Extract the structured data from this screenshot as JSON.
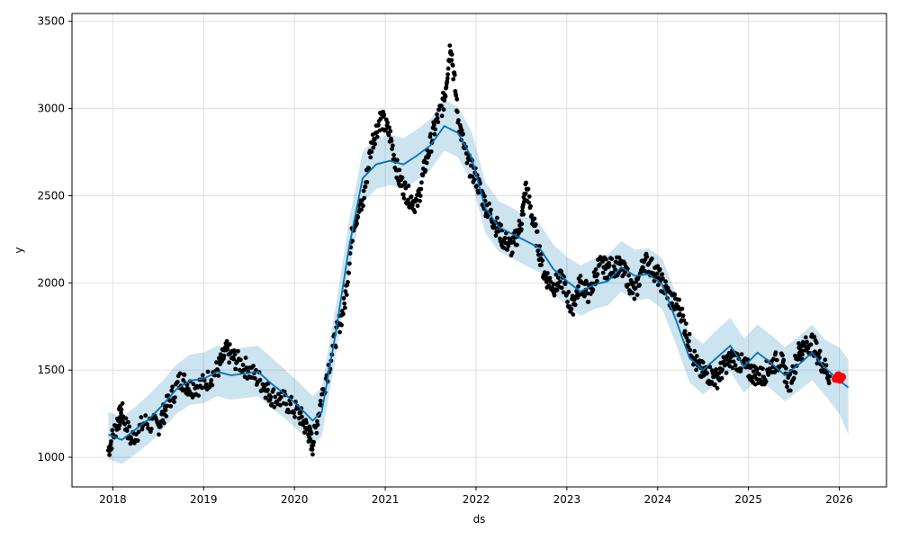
{
  "chart_data": {
    "type": "scatter",
    "title": "",
    "xlabel": "ds",
    "ylabel": "y",
    "xlim": [
      2017.55,
      2026.52
    ],
    "ylim": [
      830,
      3545
    ],
    "x_ticks": [
      2018,
      2019,
      2020,
      2021,
      2022,
      2023,
      2024,
      2025,
      2026
    ],
    "x_tick_labels": [
      "2018",
      "2019",
      "2020",
      "2021",
      "2022",
      "2023",
      "2024",
      "2025",
      "2026"
    ],
    "y_ticks": [
      1000,
      1500,
      2000,
      2500,
      3000,
      3500
    ],
    "y_tick_labels": [
      "1000",
      "1500",
      "2000",
      "2500",
      "3000",
      "3500"
    ],
    "grid": true,
    "colors": {
      "observed": "#000000",
      "trend": "#0072B2",
      "interval": "#0072B2",
      "highlight": "#ff0000"
    },
    "forecast": {
      "x": [
        2017.95,
        2018.1,
        2018.25,
        2018.4,
        2018.55,
        2018.7,
        2018.85,
        2019.0,
        2019.15,
        2019.3,
        2019.45,
        2019.6,
        2019.75,
        2019.9,
        2020.05,
        2020.2,
        2020.3,
        2020.45,
        2020.6,
        2020.75,
        2020.9,
        2021.05,
        2021.2,
        2021.35,
        2021.5,
        2021.65,
        2021.8,
        2021.95,
        2022.1,
        2022.25,
        2022.4,
        2022.55,
        2022.7,
        2022.85,
        2023.0,
        2023.15,
        2023.3,
        2023.45,
        2023.6,
        2023.75,
        2023.9,
        2024.05,
        2024.2,
        2024.35,
        2024.5,
        2024.65,
        2024.8,
        2024.95,
        2025.1,
        2025.25,
        2025.4,
        2025.55,
        2025.7,
        2025.85,
        2026.0,
        2026.1
      ],
      "yhat": [
        1130,
        1100,
        1160,
        1220,
        1300,
        1390,
        1440,
        1450,
        1490,
        1470,
        1480,
        1490,
        1420,
        1360,
        1290,
        1210,
        1260,
        1700,
        2200,
        2600,
        2680,
        2700,
        2680,
        2730,
        2790,
        2900,
        2860,
        2720,
        2430,
        2320,
        2280,
        2240,
        2200,
        2080,
        2010,
        1950,
        1990,
        2010,
        2090,
        2040,
        2050,
        1990,
        1790,
        1570,
        1500,
        1570,
        1640,
        1520,
        1600,
        1540,
        1470,
        1530,
        1600,
        1510,
        1440,
        1400
      ],
      "upper": [
        1260,
        1230,
        1290,
        1360,
        1440,
        1530,
        1590,
        1600,
        1640,
        1620,
        1630,
        1640,
        1570,
        1500,
        1430,
        1350,
        1400,
        1850,
        2350,
        2750,
        2830,
        2850,
        2830,
        2880,
        2940,
        3050,
        3010,
        2870,
        2580,
        2470,
        2430,
        2380,
        2340,
        2220,
        2150,
        2100,
        2140,
        2160,
        2240,
        2190,
        2200,
        2140,
        1940,
        1710,
        1650,
        1730,
        1800,
        1680,
        1760,
        1700,
        1630,
        1690,
        1760,
        1670,
        1630,
        1560
      ],
      "lower": [
        990,
        960,
        1020,
        1080,
        1160,
        1250,
        1300,
        1310,
        1350,
        1330,
        1340,
        1350,
        1280,
        1220,
        1150,
        1070,
        1120,
        1560,
        2060,
        2460,
        2540,
        2560,
        2540,
        2590,
        2650,
        2760,
        2720,
        2580,
        2290,
        2180,
        2140,
        2100,
        2060,
        1940,
        1870,
        1810,
        1850,
        1870,
        1950,
        1900,
        1910,
        1850,
        1650,
        1430,
        1360,
        1420,
        1490,
        1370,
        1450,
        1390,
        1320,
        1380,
        1440,
        1350,
        1250,
        1130
      ]
    },
    "observed_path": {
      "x": [
        2017.95,
        2018.05,
        2018.1,
        2018.2,
        2018.35,
        2018.5,
        2018.6,
        2018.75,
        2018.85,
        2019.0,
        2019.15,
        2019.25,
        2019.35,
        2019.5,
        2019.65,
        2019.75,
        2019.9,
        2020.05,
        2020.15,
        2020.2,
        2020.3,
        2020.45,
        2020.55,
        2020.65,
        2020.75,
        2020.85,
        2020.95,
        2021.05,
        2021.15,
        2021.25,
        2021.35,
        2021.45,
        2021.55,
        2021.65,
        2021.72,
        2021.8,
        2021.9,
        2022.0,
        2022.1,
        2022.2,
        2022.3,
        2022.4,
        2022.5,
        2022.55,
        2022.65,
        2022.75,
        2022.85,
        2022.95,
        2023.05,
        2023.15,
        2023.25,
        2023.35,
        2023.45,
        2023.55,
        2023.65,
        2023.75,
        2023.85,
        2023.95,
        2024.05,
        2024.15,
        2024.25,
        2024.35,
        2024.45,
        2024.55,
        2024.65,
        2024.75,
        2024.85,
        2024.95,
        2025.05,
        2025.15,
        2025.25,
        2025.35,
        2025.45,
        2025.55,
        2025.6,
        2025.7,
        2025.8,
        2025.9
      ],
      "y": [
        1040,
        1200,
        1260,
        1100,
        1200,
        1180,
        1300,
        1450,
        1400,
        1420,
        1500,
        1610,
        1560,
        1500,
        1420,
        1350,
        1320,
        1250,
        1150,
        1070,
        1350,
        1680,
        1870,
        2350,
        2450,
        2800,
        2950,
        2850,
        2600,
        2500,
        2450,
        2700,
        2900,
        3050,
        3380,
        2950,
        2700,
        2600,
        2450,
        2350,
        2250,
        2200,
        2350,
        2550,
        2300,
        2050,
        1980,
        2020,
        1850,
        2000,
        1930,
        2100,
        2080,
        2100,
        2050,
        1930,
        2130,
        2080,
        2000,
        1900,
        1850,
        1650,
        1500,
        1480,
        1450,
        1540,
        1570,
        1520,
        1480,
        1460,
        1530,
        1560,
        1420,
        1600,
        1620,
        1660,
        1550,
        1460
      ]
    },
    "highlight": {
      "x": [
        2025.96,
        2025.99,
        2026.01,
        2026.03
      ],
      "y": [
        1450,
        1470,
        1445,
        1460
      ]
    }
  }
}
